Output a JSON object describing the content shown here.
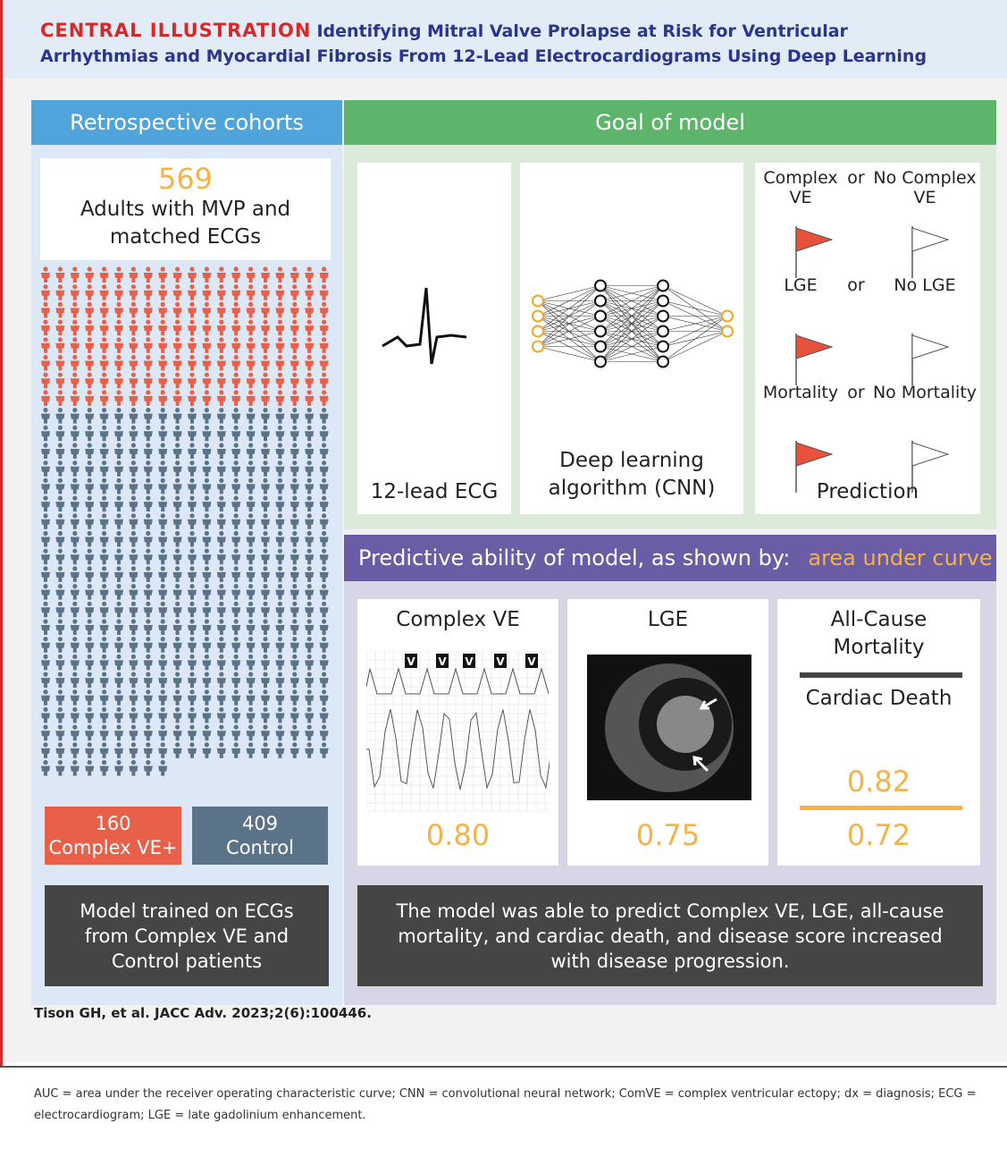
{
  "header": {
    "label": "CENTRAL ILLUSTRATION",
    "title": "Identifying Mitral Valve Prolapse at Risk for Ventricular Arrhythmias and Myocardial Fibrosis From 12-Lead Electrocardiograms Using Deep Learning"
  },
  "cohorts": {
    "heading": "Retrospective cohorts",
    "count": "569",
    "count_label": "Adults with MVP and matched ECGs",
    "groups": [
      {
        "value": 160,
        "label": "Complex VE+",
        "color": "#e8604a"
      },
      {
        "value": 409,
        "label": "Control",
        "color": "#5b7389"
      }
    ],
    "note": "Model trained on ECGs from Complex VE and Control patients"
  },
  "goal": {
    "heading": "Goal of model",
    "ecg_label": "12-lead ECG",
    "algorithm_label": "Deep learning algorithm (CNN)",
    "prediction": {
      "rows": [
        {
          "positive": "Complex VE",
          "negative": "No Complex VE"
        },
        {
          "positive": "LGE",
          "negative": "No LGE"
        },
        {
          "positive": "Mortality",
          "negative": "No Mortality"
        }
      ],
      "connector": "or",
      "label": "Prediction"
    }
  },
  "performance": {
    "heading": "Predictive ability of model, as shown by:",
    "highlight": "area under curve",
    "strip_marker": "V",
    "panels": [
      {
        "title": "Complex VE",
        "value": "0.80"
      },
      {
        "title": "LGE",
        "value": "0.75"
      },
      {
        "title": "All-Cause Mortality",
        "value": "0.72",
        "secondary_title": "Cardiac Death",
        "secondary_value": "0.82"
      }
    ],
    "summary": "The model was able to predict Complex VE, LGE, all-cause mortality, and cardiac death, and disease score increased with disease progression."
  },
  "citation": "Tison GH, et al. JACC Adv. 2023;2(6):100446.",
  "footnote": "AUC = area under the receiver operating characteristic curve; CNN = convolutional neural network; ComVE = complex ventricular ectopy; dx = diagnosis; ECG = electrocardiogram; LGE = late gadolinium enhancement."
}
